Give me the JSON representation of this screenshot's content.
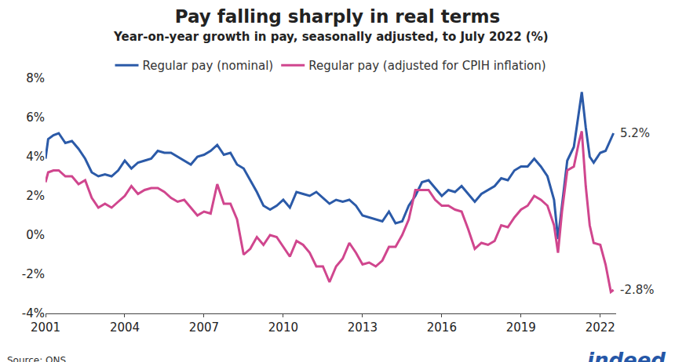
{
  "chart_data": {
    "type": "line",
    "title": "Pay falling sharply in real terms",
    "subtitle": "Year-on-year growth in pay, seasonally adjusted, to July 2022 (%)",
    "source": "Source: ONS",
    "logo": "indeed",
    "legend": "top",
    "grid": false,
    "x": [
      2001.0,
      2001.1,
      2001.3,
      2001.5,
      2001.75,
      2002.0,
      2002.25,
      2002.5,
      2002.75,
      2003.0,
      2003.25,
      2003.5,
      2003.75,
      2004.0,
      2004.25,
      2004.5,
      2004.75,
      2005.0,
      2005.25,
      2005.5,
      2005.75,
      2006.0,
      2006.25,
      2006.5,
      2006.75,
      2007.0,
      2007.25,
      2007.5,
      2007.75,
      2008.0,
      2008.25,
      2008.5,
      2008.75,
      2009.0,
      2009.25,
      2009.5,
      2009.75,
      2010.0,
      2010.25,
      2010.5,
      2010.75,
      2011.0,
      2011.25,
      2011.5,
      2011.75,
      2012.0,
      2012.25,
      2012.5,
      2012.75,
      2013.0,
      2013.25,
      2013.5,
      2013.75,
      2014.0,
      2014.25,
      2014.5,
      2014.75,
      2015.0,
      2015.25,
      2015.5,
      2015.75,
      2016.0,
      2016.25,
      2016.5,
      2016.75,
      2017.0,
      2017.25,
      2017.5,
      2017.75,
      2018.0,
      2018.25,
      2018.5,
      2018.75,
      2019.0,
      2019.25,
      2019.5,
      2019.75,
      2020.0,
      2020.25,
      2020.4,
      2020.55,
      2020.75,
      2021.0,
      2021.2,
      2021.3,
      2021.45,
      2021.6,
      2021.75,
      2022.0,
      2022.2,
      2022.4,
      2022.5
    ],
    "xlim": [
      2001,
      2022.6
    ],
    "xticks": [
      2001,
      2004,
      2007,
      2010,
      2013,
      2016,
      2019,
      2022
    ],
    "ylim": [
      -4,
      8
    ],
    "yticks": [
      {
        "value": -4,
        "label": "-4%"
      },
      {
        "value": -2,
        "label": "-2%"
      },
      {
        "value": 0,
        "label": "0%"
      },
      {
        "value": 2,
        "label": "2%"
      },
      {
        "value": 4,
        "label": "4%"
      },
      {
        "value": 6,
        "label": "6%"
      },
      {
        "value": 8,
        "label": "8%"
      }
    ],
    "series": [
      {
        "name": "Regular pay (nominal)",
        "color": "#2b5aa8",
        "values": [
          3.9,
          4.9,
          5.1,
          5.2,
          4.7,
          4.8,
          4.4,
          3.9,
          3.2,
          3.0,
          3.1,
          3.0,
          3.3,
          3.8,
          3.4,
          3.7,
          3.8,
          3.9,
          4.3,
          4.2,
          4.2,
          4.0,
          3.8,
          3.6,
          4.0,
          4.1,
          4.3,
          4.6,
          4.1,
          4.2,
          3.6,
          3.4,
          2.8,
          2.2,
          1.5,
          1.3,
          1.5,
          1.8,
          1.4,
          2.2,
          2.1,
          2.0,
          2.2,
          1.9,
          1.6,
          1.8,
          1.7,
          1.8,
          1.5,
          1.0,
          0.9,
          0.8,
          0.7,
          1.2,
          0.6,
          0.7,
          1.5,
          2.0,
          2.7,
          2.8,
          2.4,
          2.0,
          2.3,
          2.2,
          2.5,
          2.1,
          1.7,
          2.1,
          2.3,
          2.5,
          2.9,
          2.8,
          3.3,
          3.5,
          3.5,
          3.9,
          3.5,
          3.0,
          1.8,
          -0.2,
          1.5,
          3.8,
          4.5,
          6.5,
          7.3,
          5.5,
          4.0,
          3.7,
          4.2,
          4.3,
          4.9,
          5.2
        ]
      },
      {
        "name": "Regular pay (adjusted for CPIH inflation)",
        "color": "#d0468e",
        "values": [
          2.7,
          3.2,
          3.3,
          3.3,
          3.0,
          3.0,
          2.6,
          2.8,
          1.9,
          1.4,
          1.6,
          1.4,
          1.7,
          2.0,
          2.5,
          2.1,
          2.3,
          2.4,
          2.4,
          2.2,
          1.9,
          1.7,
          1.8,
          1.4,
          1.0,
          1.2,
          1.1,
          2.6,
          1.6,
          1.6,
          0.8,
          -1.0,
          -0.7,
          -0.1,
          -0.5,
          0.0,
          -0.1,
          -0.6,
          -1.1,
          -0.3,
          -0.5,
          -0.9,
          -1.6,
          -1.6,
          -2.4,
          -1.6,
          -1.2,
          -0.4,
          -0.9,
          -1.5,
          -1.4,
          -1.6,
          -1.3,
          -0.6,
          -0.6,
          0.0,
          0.8,
          2.3,
          2.3,
          2.3,
          1.8,
          1.5,
          1.5,
          1.3,
          1.2,
          0.3,
          -0.7,
          -0.4,
          -0.5,
          -0.3,
          0.5,
          0.4,
          0.9,
          1.3,
          1.5,
          2.0,
          1.8,
          1.5,
          0.5,
          -0.9,
          1.2,
          3.3,
          3.5,
          4.8,
          5.3,
          2.5,
          0.5,
          -0.4,
          -0.5,
          -1.5,
          -2.9,
          -2.8
        ]
      }
    ],
    "annotations": [
      {
        "x": 2022.5,
        "y": 5.2,
        "text": "5.2%"
      },
      {
        "x": 2022.5,
        "y": -2.8,
        "text": "-2.8%"
      }
    ]
  }
}
